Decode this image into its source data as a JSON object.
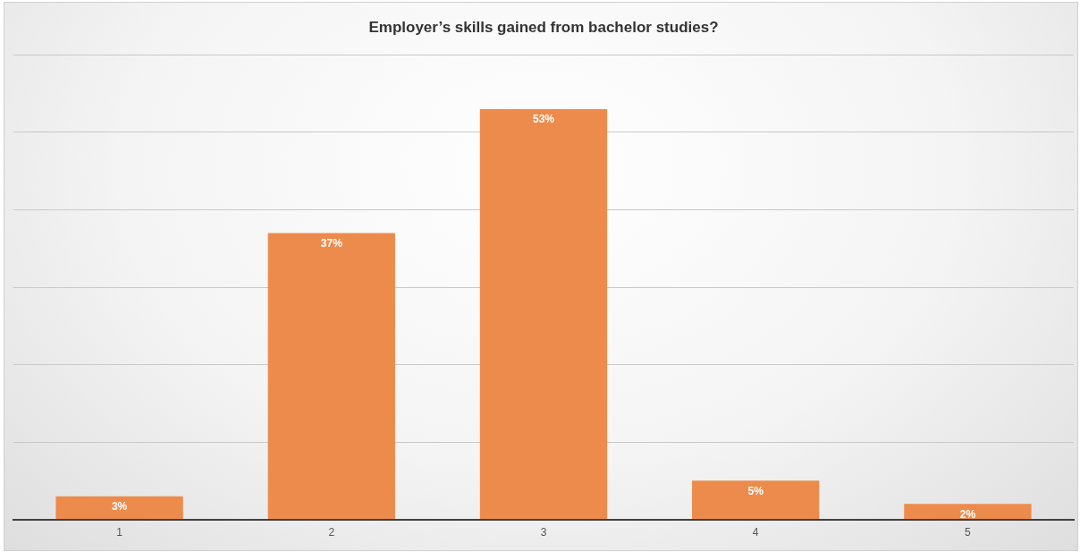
{
  "chart_data": {
    "type": "bar",
    "title": "Employer’s skills gained from bachelor studies?",
    "categories": [
      "1",
      "2",
      "3",
      "4",
      "5"
    ],
    "values": [
      3,
      37,
      53,
      5,
      2
    ],
    "value_labels": [
      "3%",
      "37%",
      "53%",
      "5%",
      "2%"
    ],
    "color": "#ed8b4c",
    "grid": "y",
    "tick_labels": "x",
    "legend": false
  }
}
